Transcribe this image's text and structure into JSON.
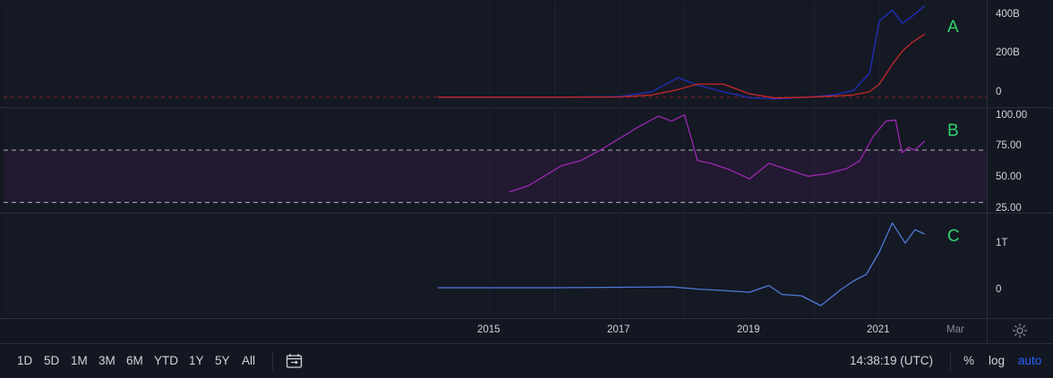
{
  "panes": {
    "A": {
      "letter": "A",
      "y_ticks": [
        "400B",
        "200B",
        "0"
      ]
    },
    "B": {
      "letter": "B",
      "y_ticks": [
        "100.00",
        "75.00",
        "50.00",
        "25.00"
      ]
    },
    "C": {
      "letter": "C",
      "y_ticks": [
        "1T",
        "0"
      ]
    }
  },
  "x_axis": {
    "ticks": [
      "2015",
      "2017",
      "2019",
      "2021",
      "Mar"
    ]
  },
  "toolbar": {
    "ranges": [
      "1D",
      "5D",
      "1M",
      "3M",
      "6M",
      "YTD",
      "1Y",
      "5Y",
      "All"
    ],
    "time": "14:38:19 (UTC)",
    "percent": "%",
    "log": "log",
    "auto": "auto"
  },
  "icons": {
    "compare": "calendar-range-icon",
    "settings": "gear-icon"
  },
  "colors": {
    "background": "#131722",
    "series_blue": "#1e2fbf",
    "series_red": "#c62828",
    "rsi_purple": "#9c27b0",
    "pane_c_line": "#4f79d6",
    "letter_green": "#2fd36b",
    "accent": "#2962ff"
  },
  "chart_data": [
    {
      "type": "line",
      "pane": "A",
      "x": [
        "2014.2",
        "2015",
        "2016",
        "2016.5",
        "2017",
        "2017.5",
        "2017.9",
        "2018.2",
        "2018.6",
        "2019",
        "2019.4",
        "2019.9",
        "2020.3",
        "2020.6",
        "2020.85",
        "2021.0",
        "2021.2",
        "2021.35",
        "2021.5",
        "2021.7"
      ],
      "series": [
        {
          "color": "blue",
          "values": [
            0,
            0,
            0,
            1,
            3,
            25,
            90,
            55,
            25,
            -3,
            -8,
            0,
            10,
            30,
            110,
            350,
            400,
            340,
            370,
            420
          ]
        },
        {
          "color": "red",
          "values": [
            0,
            0,
            0,
            0,
            1,
            10,
            35,
            60,
            60,
            15,
            -4,
            0,
            5,
            10,
            25,
            60,
            150,
            210,
            250,
            290
          ]
        }
      ],
      "ylim": [
        -30,
        430
      ],
      "baseline": 0
    },
    {
      "type": "line",
      "pane": "B",
      "x": [
        "2015.3",
        "2015.6",
        "2015.9",
        "2016.1",
        "2016.4",
        "2016.7",
        "2016.9",
        "2017.1",
        "2017.3",
        "2017.6",
        "2017.8",
        "2018.0",
        "2018.2",
        "2018.4",
        "2018.7",
        "2019.0",
        "2019.3",
        "2019.6",
        "2019.9",
        "2020.2",
        "2020.5",
        "2020.7",
        "2020.9",
        "2021.1",
        "2021.25",
        "2021.35",
        "2021.45",
        "2021.55",
        "2021.7"
      ],
      "series": [
        {
          "color": "purple",
          "values": [
            38,
            43,
            52,
            58,
            62,
            70,
            76,
            82,
            88,
            96,
            92,
            97,
            62,
            60,
            55,
            48,
            60,
            55,
            50,
            52,
            56,
            62,
            80,
            92,
            93,
            68,
            72,
            70,
            77
          ]
        }
      ],
      "ylim": [
        25,
        100
      ],
      "bands": [
        70,
        30
      ]
    },
    {
      "type": "line",
      "pane": "C",
      "x": [
        "2014.2",
        "2015",
        "2016",
        "2017",
        "2017.8",
        "2018.2",
        "2018.8",
        "2019.0",
        "2019.3",
        "2019.5",
        "2019.8",
        "2020.1",
        "2020.4",
        "2020.6",
        "2020.8",
        "2021.0",
        "2021.2",
        "2021.4",
        "2021.55",
        "2021.7"
      ],
      "series": [
        {
          "color": "blue",
          "values": [
            0,
            0,
            0,
            0.01,
            0.02,
            -0.03,
            -0.08,
            -0.1,
            0.05,
            -0.15,
            -0.18,
            -0.4,
            -0.05,
            0.15,
            0.3,
            0.8,
            1.45,
            1.0,
            1.3,
            1.2
          ]
        }
      ],
      "ylim": [
        -0.6,
        1.6
      ]
    }
  ]
}
